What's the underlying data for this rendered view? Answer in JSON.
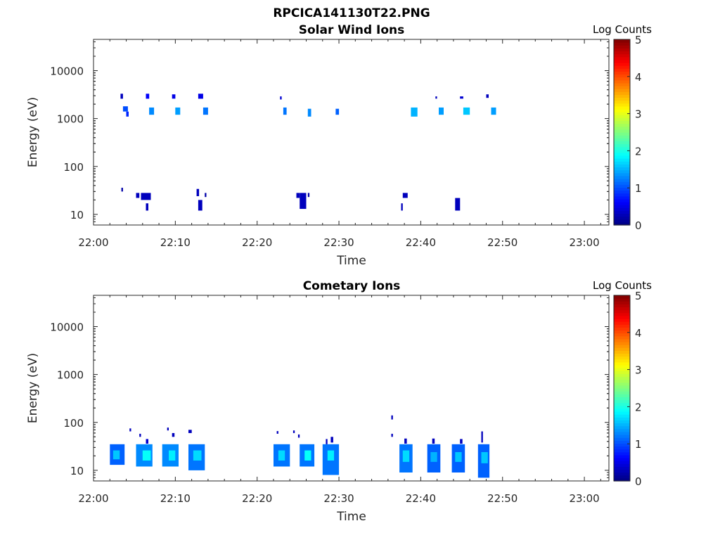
{
  "figure": {
    "title": "RPCICA141130T22.PNG",
    "colormap": "jet",
    "background": "#ffffff"
  },
  "chart_data": [
    {
      "type": "heatmap",
      "title": "Solar Wind Ions",
      "xlabel": "Time",
      "ylabel": "Energy (eV)",
      "xlim": [
        "22:00",
        "23:03"
      ],
      "x_ticks": [
        "22:00",
        "22:10",
        "22:20",
        "22:30",
        "22:40",
        "22:50",
        "23:00"
      ],
      "ylim": [
        6,
        45000
      ],
      "y_scale": "log",
      "y_ticks": [
        "10",
        "100",
        "1000",
        "10000"
      ],
      "colorbar": {
        "label": "Log Counts",
        "range": [
          0,
          5
        ],
        "ticks": [
          "0",
          "1",
          "2",
          "3",
          "4",
          "5"
        ]
      },
      "cells": [
        {
          "t0": "22:03.3",
          "t1": "22:03.6",
          "e0": 2600,
          "e1": 3300,
          "log_counts": 0.3
        },
        {
          "t0": "22:03.6",
          "t1": "22:04.2",
          "e0": 1400,
          "e1": 1800,
          "log_counts": 1.0
        },
        {
          "t0": "22:04.0",
          "t1": "22:04.3",
          "e0": 1100,
          "e1": 1400,
          "log_counts": 0.8
        },
        {
          "t0": "22:06.4",
          "t1": "22:06.8",
          "e0": 2600,
          "e1": 3300,
          "log_counts": 0.6
        },
        {
          "t0": "22:06.8",
          "t1": "22:07.4",
          "e0": 1200,
          "e1": 1700,
          "log_counts": 1.3
        },
        {
          "t0": "22:09.6",
          "t1": "22:10.0",
          "e0": 2600,
          "e1": 3200,
          "log_counts": 0.5
        },
        {
          "t0": "22:10.0",
          "t1": "22:10.6",
          "e0": 1200,
          "e1": 1700,
          "log_counts": 1.4
        },
        {
          "t0": "22:12.8",
          "t1": "22:13.4",
          "e0": 2600,
          "e1": 3300,
          "log_counts": 0.5
        },
        {
          "t0": "22:13.4",
          "t1": "22:14.0",
          "e0": 1200,
          "e1": 1700,
          "log_counts": 1.2
        },
        {
          "t0": "22:22.8",
          "t1": "22:23.0",
          "e0": 2500,
          "e1": 2900,
          "log_counts": 0.4
        },
        {
          "t0": "22:23.2",
          "t1": "22:23.6",
          "e0": 1200,
          "e1": 1700,
          "log_counts": 1.2
        },
        {
          "t0": "22:26.2",
          "t1": "22:26.6",
          "e0": 1100,
          "e1": 1600,
          "log_counts": 1.3
        },
        {
          "t0": "22:29.6",
          "t1": "22:30.0",
          "e0": 1200,
          "e1": 1600,
          "log_counts": 1.1
        },
        {
          "t0": "22:38.8",
          "t1": "22:39.6",
          "e0": 1100,
          "e1": 1700,
          "log_counts": 1.5
        },
        {
          "t0": "22:41.8",
          "t1": "22:42.0",
          "e0": 2600,
          "e1": 2900,
          "log_counts": 0.3
        },
        {
          "t0": "22:42.2",
          "t1": "22:42.8",
          "e0": 1200,
          "e1": 1700,
          "log_counts": 1.4
        },
        {
          "t0": "22:44.8",
          "t1": "22:45.2",
          "e0": 2600,
          "e1": 2900,
          "log_counts": 0.4
        },
        {
          "t0": "22:45.2",
          "t1": "22:46.0",
          "e0": 1200,
          "e1": 1700,
          "log_counts": 1.6
        },
        {
          "t0": "22:48.0",
          "t1": "22:48.3",
          "e0": 2700,
          "e1": 3200,
          "log_counts": 0.3
        },
        {
          "t0": "22:48.6",
          "t1": "22:49.2",
          "e0": 1200,
          "e1": 1700,
          "log_counts": 1.4
        },
        {
          "t0": "22:03.4",
          "t1": "22:03.6",
          "e0": 30,
          "e1": 36,
          "log_counts": 0.2
        },
        {
          "t0": "22:05.2",
          "t1": "22:05.6",
          "e0": 22,
          "e1": 28,
          "log_counts": 0.3
        },
        {
          "t0": "22:05.8",
          "t1": "22:07.0",
          "e0": 20,
          "e1": 28,
          "log_counts": 0.3
        },
        {
          "t0": "22:06.4",
          "t1": "22:06.7",
          "e0": 12,
          "e1": 17,
          "log_counts": 0.3
        },
        {
          "t0": "22:12.6",
          "t1": "22:12.9",
          "e0": 24,
          "e1": 34,
          "log_counts": 0.3
        },
        {
          "t0": "22:12.8",
          "t1": "22:13.3",
          "e0": 12,
          "e1": 20,
          "log_counts": 0.3
        },
        {
          "t0": "22:13.6",
          "t1": "22:13.8",
          "e0": 23,
          "e1": 28,
          "log_counts": 0.2
        },
        {
          "t0": "22:24.8",
          "t1": "22:25.2",
          "e0": 22,
          "e1": 28,
          "log_counts": 0.3
        },
        {
          "t0": "22:25.2",
          "t1": "22:26.0",
          "e0": 13,
          "e1": 28,
          "log_counts": 0.3
        },
        {
          "t0": "22:26.2",
          "t1": "22:26.4",
          "e0": 23,
          "e1": 28,
          "log_counts": 0.2
        },
        {
          "t0": "22:37.6",
          "t1": "22:37.8",
          "e0": 12,
          "e1": 17,
          "log_counts": 0.3
        },
        {
          "t0": "22:37.8",
          "t1": "22:38.4",
          "e0": 22,
          "e1": 28,
          "log_counts": 0.3
        },
        {
          "t0": "22:44.2",
          "t1": "22:44.8",
          "e0": 12,
          "e1": 22,
          "log_counts": 0.3
        }
      ]
    },
    {
      "type": "heatmap",
      "title": "Cometary Ions",
      "xlabel": "Time",
      "ylabel": "Energy (eV)",
      "xlim": [
        "22:00",
        "23:03"
      ],
      "x_ticks": [
        "22:00",
        "22:10",
        "22:20",
        "22:30",
        "22:40",
        "22:50",
        "23:00"
      ],
      "ylim": [
        6,
        45000
      ],
      "y_scale": "log",
      "y_ticks": [
        "10",
        "100",
        "1000",
        "10000"
      ],
      "colorbar": {
        "label": "Log Counts",
        "range": [
          0,
          5
        ],
        "ticks": [
          "0",
          "1",
          "2",
          "3",
          "4",
          "5"
        ]
      },
      "cells": [
        {
          "t0": "22:02.0",
          "t1": "22:03.8",
          "e0": 13,
          "e1": 35,
          "log_counts": 1.1
        },
        {
          "t0": "22:02.4",
          "t1": "22:03.2",
          "e0": 17,
          "e1": 26,
          "log_counts": 1.6
        },
        {
          "t0": "22:04.4",
          "t1": "22:04.6",
          "e0": 65,
          "e1": 75,
          "log_counts": 0.3
        },
        {
          "t0": "22:05.2",
          "t1": "22:07.2",
          "e0": 12,
          "e1": 35,
          "log_counts": 1.3
        },
        {
          "t0": "22:06.0",
          "t1": "22:07.0",
          "e0": 16,
          "e1": 26,
          "log_counts": 1.9
        },
        {
          "t0": "22:05.6",
          "t1": "22:05.8",
          "e0": 50,
          "e1": 58,
          "log_counts": 0.3
        },
        {
          "t0": "22:06.4",
          "t1": "22:06.7",
          "e0": 36,
          "e1": 45,
          "log_counts": 0.4
        },
        {
          "t0": "22:08.4",
          "t1": "22:10.4",
          "e0": 12,
          "e1": 35,
          "log_counts": 1.3
        },
        {
          "t0": "22:09.2",
          "t1": "22:10.0",
          "e0": 16,
          "e1": 26,
          "log_counts": 1.8
        },
        {
          "t0": "22:09.0",
          "t1": "22:09.2",
          "e0": 68,
          "e1": 78,
          "log_counts": 0.3
        },
        {
          "t0": "22:09.6",
          "t1": "22:09.9",
          "e0": 50,
          "e1": 60,
          "log_counts": 0.3
        },
        {
          "t0": "22:11.6",
          "t1": "22:13.6",
          "e0": 10,
          "e1": 35,
          "log_counts": 1.2
        },
        {
          "t0": "22:12.2",
          "t1": "22:13.2",
          "e0": 16,
          "e1": 26,
          "log_counts": 1.7
        },
        {
          "t0": "22:11.6",
          "t1": "22:12.0",
          "e0": 60,
          "e1": 70,
          "log_counts": 0.3
        },
        {
          "t0": "22:22.0",
          "t1": "22:24.0",
          "e0": 12,
          "e1": 35,
          "log_counts": 1.2
        },
        {
          "t0": "22:22.6",
          "t1": "22:23.4",
          "e0": 16,
          "e1": 26,
          "log_counts": 1.7
        },
        {
          "t0": "22:22.4",
          "t1": "22:22.6",
          "e0": 58,
          "e1": 66,
          "log_counts": 0.3
        },
        {
          "t0": "22:24.4",
          "t1": "22:24.6",
          "e0": 60,
          "e1": 68,
          "log_counts": 0.3
        },
        {
          "t0": "22:25.2",
          "t1": "22:27.0",
          "e0": 12,
          "e1": 35,
          "log_counts": 1.2
        },
        {
          "t0": "22:25.8",
          "t1": "22:26.6",
          "e0": 16,
          "e1": 26,
          "log_counts": 1.9
        },
        {
          "t0": "22:25.0",
          "t1": "22:25.2",
          "e0": 48,
          "e1": 56,
          "log_counts": 0.3
        },
        {
          "t0": "22:28.0",
          "t1": "22:30.0",
          "e0": 8,
          "e1": 35,
          "log_counts": 1.2
        },
        {
          "t0": "22:28.6",
          "t1": "22:29.4",
          "e0": 16,
          "e1": 26,
          "log_counts": 1.8
        },
        {
          "t0": "22:28.4",
          "t1": "22:28.6",
          "e0": 35,
          "e1": 45,
          "log_counts": 0.3
        },
        {
          "t0": "22:29.0",
          "t1": "22:29.3",
          "e0": 38,
          "e1": 50,
          "log_counts": 0.3
        },
        {
          "t0": "22:36.4",
          "t1": "22:36.6",
          "e0": 50,
          "e1": 58,
          "log_counts": 0.3
        },
        {
          "t0": "22:36.4",
          "t1": "22:36.6",
          "e0": 115,
          "e1": 140,
          "log_counts": 0.3
        },
        {
          "t0": "22:37.4",
          "t1": "22:39.0",
          "e0": 9,
          "e1": 35,
          "log_counts": 1.2
        },
        {
          "t0": "22:37.8",
          "t1": "22:38.6",
          "e0": 15,
          "e1": 26,
          "log_counts": 1.7
        },
        {
          "t0": "22:38.0",
          "t1": "22:38.3",
          "e0": 36,
          "e1": 46,
          "log_counts": 0.3
        },
        {
          "t0": "22:40.8",
          "t1": "22:42.4",
          "e0": 9,
          "e1": 35,
          "log_counts": 1.1
        },
        {
          "t0": "22:41.2",
          "t1": "22:42.0",
          "e0": 15,
          "e1": 24,
          "log_counts": 1.5
        },
        {
          "t0": "22:41.4",
          "t1": "22:41.7",
          "e0": 36,
          "e1": 46,
          "log_counts": 0.3
        },
        {
          "t0": "22:43.8",
          "t1": "22:45.4",
          "e0": 9,
          "e1": 35,
          "log_counts": 1.1
        },
        {
          "t0": "22:44.2",
          "t1": "22:45.0",
          "e0": 15,
          "e1": 24,
          "log_counts": 1.6
        },
        {
          "t0": "22:44.8",
          "t1": "22:45.1",
          "e0": 36,
          "e1": 45,
          "log_counts": 0.3
        },
        {
          "t0": "22:47.0",
          "t1": "22:48.4",
          "e0": 7,
          "e1": 35,
          "log_counts": 1.1
        },
        {
          "t0": "22:47.4",
          "t1": "22:48.2",
          "e0": 14,
          "e1": 24,
          "log_counts": 1.6
        },
        {
          "t0": "22:47.4",
          "t1": "22:47.6",
          "e0": 38,
          "e1": 65,
          "log_counts": 0.3
        }
      ]
    }
  ]
}
